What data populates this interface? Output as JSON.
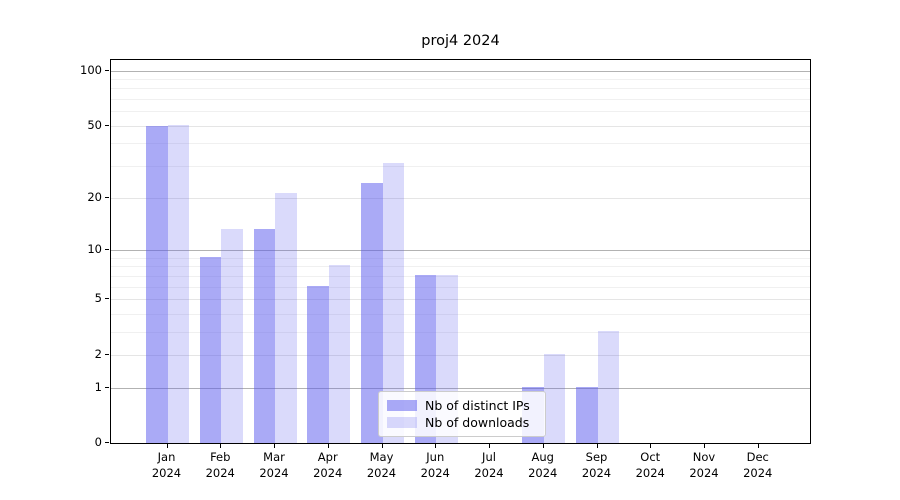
{
  "title": "proj4 2024",
  "chart_data": {
    "type": "bar",
    "title": "proj4 2024",
    "categories": [
      "Jan",
      "Feb",
      "Mar",
      "Apr",
      "May",
      "Jun",
      "Jul",
      "Aug",
      "Sep",
      "Oct",
      "Nov",
      "Dec"
    ],
    "year_label": "2024",
    "series": [
      {
        "name": "Nb of distinct IPs",
        "color": "rgba(85,85,238,0.5)",
        "values": [
          49,
          9,
          13,
          6,
          24,
          7,
          0,
          1,
          1,
          0,
          0,
          0
        ]
      },
      {
        "name": "Nb of downloads",
        "color": "rgba(85,85,238,0.22)",
        "values": [
          50,
          13,
          21,
          8,
          31,
          7,
          0,
          2,
          3,
          0,
          0,
          0
        ]
      }
    ],
    "yscale": "log1p",
    "ylim": [
      0,
      114
    ],
    "yticks_labeled": [
      0,
      1,
      2,
      5,
      10,
      20,
      50,
      100
    ],
    "yticks_major": [
      1,
      10,
      100
    ],
    "yticks_minor": [
      3,
      4,
      6,
      7,
      8,
      9,
      30,
      40,
      60,
      70,
      80,
      90
    ],
    "grid": true,
    "legend_position": "lower center"
  },
  "colors": {
    "bar_distinct_ips": "rgba(85,85,238,0.5)",
    "bar_downloads": "rgba(85,85,238,0.22)",
    "grid_major": "#b2b2b2",
    "grid_labeled_minor": "#e5e5e5",
    "grid_minor": "#f0f0f0",
    "spine": "#000000"
  }
}
